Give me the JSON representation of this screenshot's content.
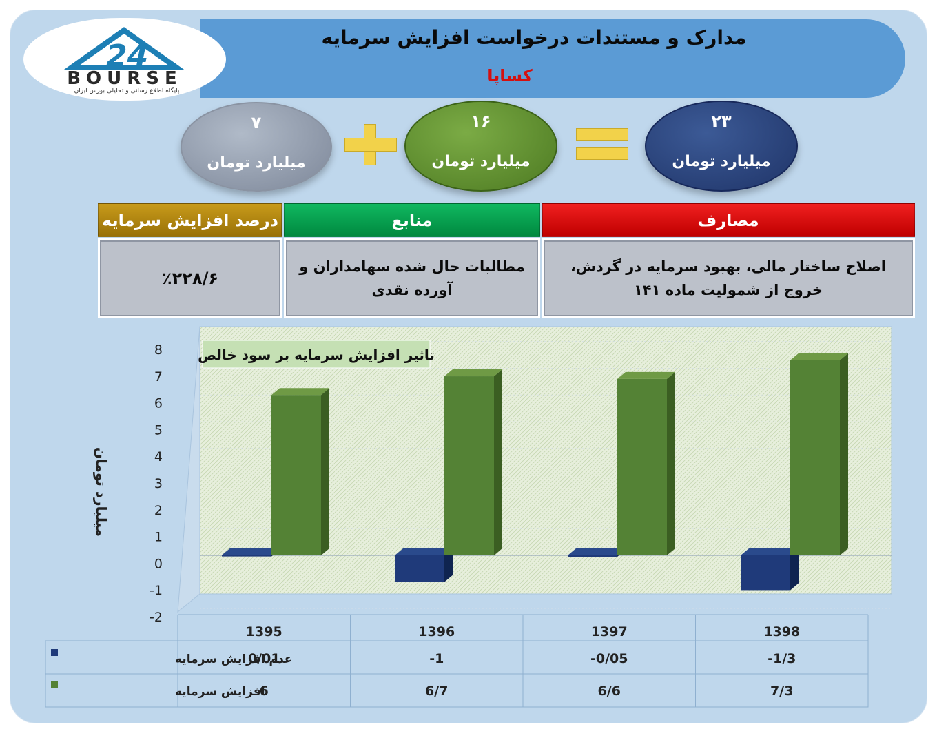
{
  "header": {
    "title": "مدارک و مستندات درخواست افزایش سرمایه",
    "company": "کساپا"
  },
  "logo": {
    "text": "BOURSE",
    "tagline": "پایگاه اطلاع رسانی و تحلیلی بورس ایران"
  },
  "equation": {
    "left": {
      "value": "۷",
      "unit": "میلیارد تومان"
    },
    "middle": {
      "value": "۱۶",
      "unit": "میلیارد تومان"
    },
    "right": {
      "value": "۲۳",
      "unit": "میلیارد تومان"
    }
  },
  "table": {
    "expenses_header": "مصارف",
    "expenses_text": "اصلاح ساختار مالی، بهبود سرمایه در گردش، خروج از شمولیت ماده ۱۴۱",
    "sources_header": "منابع",
    "sources_text": "مطالبات حال شده سهامداران و آورده نقدی",
    "percent_header": "درصد افزایش سرمایه",
    "percent_value": "٪۲۲۸/۶"
  },
  "colors": {
    "header_blue": "#5b9bd5",
    "expenses_red": "#e00000",
    "sources_green": "#00a050",
    "percent_gold": "#b8860b",
    "series_navy": "#1f3a7a",
    "series_green": "#548235"
  },
  "chart_data": {
    "type": "bar",
    "title": "تاثیر افزایش سرمایه بر سود خالص",
    "ylabel": "میلیارد تومان",
    "ylim": [
      -2,
      8
    ],
    "yticks": [
      "8",
      "7",
      "6",
      "5",
      "4",
      "3",
      "2",
      "1",
      "0",
      "-1",
      "-2"
    ],
    "categories": [
      "1395",
      "1396",
      "1397",
      "1398"
    ],
    "series": [
      {
        "name": "عدم افزایش سرمایه",
        "values": [
          0.01,
          -1,
          -0.05,
          -1.3
        ],
        "labels": [
          "0/01",
          "-1",
          "-0/05",
          "-1/3"
        ],
        "color": "#1f3a7a"
      },
      {
        "name": "افزایش سرمایه",
        "values": [
          6,
          6.7,
          6.6,
          7.3
        ],
        "labels": [
          "6",
          "6/7",
          "6/6",
          "7/3"
        ],
        "color": "#548235"
      }
    ]
  }
}
